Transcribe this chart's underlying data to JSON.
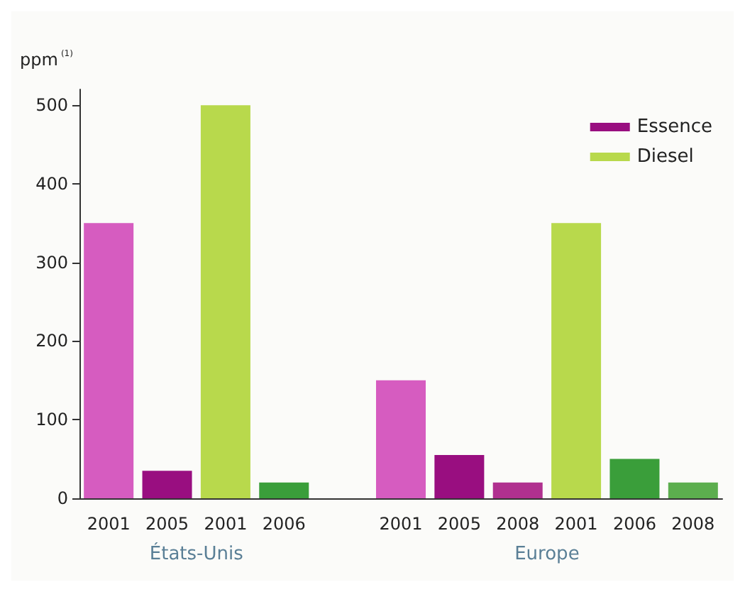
{
  "chart_data": {
    "type": "bar",
    "ylabel": "ppm$^{(1)}$",
    "categories": [
      "2001",
      "2005",
      "2001",
      "2006",
      null,
      "2001",
      "2005",
      "2008",
      "2001",
      "2006",
      "2008"
    ],
    "series": [
      {
        "name": "Essence",
        "color": "#990e80",
        "values": [
          350,
          35,
          null,
          null,
          null,
          150,
          55,
          20,
          null,
          null,
          null
        ],
        "colors": [
          "#d65cc0",
          "#990e80",
          null,
          null,
          null,
          "#d65cc0",
          "#990e80",
          "#b0308f",
          null,
          null,
          null
        ]
      },
      {
        "name": "Diesel",
        "color": "#b8d94c",
        "values": [
          null,
          null,
          500,
          20,
          null,
          null,
          null,
          null,
          350,
          50,
          20
        ],
        "colors": [
          null,
          null,
          "#b8d94c",
          "#3a9e3a",
          null,
          null,
          null,
          null,
          "#b8d94c",
          "#3a9e3a",
          "#5cae4e"
        ]
      }
    ],
    "ylim": [
      0,
      520
    ],
    "yticks": [
      0,
      100,
      200,
      300,
      400,
      500
    ],
    "grid": false,
    "legend": "top right",
    "annotations": [
      "États-Unis",
      "Europe"
    ]
  }
}
